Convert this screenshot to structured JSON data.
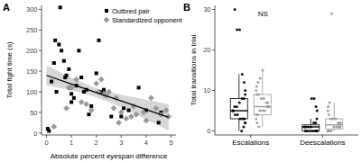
{
  "chart_data": [
    {
      "type": "scatter",
      "panel": "A",
      "x_label": "Absolute percent eyespan difference",
      "y_label": "Total fight time (s)",
      "xlim": [
        -0.2,
        5.2
      ],
      "xticks": [
        0,
        1,
        2,
        3,
        4,
        5
      ],
      "ylim": [
        -5,
        310
      ],
      "yticks": [
        0,
        50,
        100,
        150,
        200,
        250,
        300
      ],
      "grid": false,
      "legend": "top-right",
      "series": [
        {
          "name": "Outbred pair",
          "color": "#000000",
          "marker": "square",
          "x": [
            0.05,
            0.1,
            0.2,
            0.3,
            0.35,
            0.4,
            0.5,
            0.55,
            0.6,
            0.7,
            0.75,
            0.8,
            0.9,
            1.0,
            1.0,
            1.1,
            1.2,
            1.3,
            1.4,
            1.5,
            1.6,
            1.7,
            1.8,
            2.0,
            2.1,
            2.2,
            2.3,
            2.6,
            3.0,
            3.1,
            3.3,
            3.7,
            4.0,
            4.5,
            4.6
          ],
          "values": [
            10,
            5,
            125,
            170,
            225,
            100,
            215,
            305,
            200,
            175,
            135,
            140,
            155,
            95,
            75,
            85,
            115,
            200,
            135,
            100,
            105,
            45,
            65,
            145,
            225,
            100,
            105,
            40,
            40,
            60,
            55,
            110,
            55,
            25,
            50
          ]
        },
        {
          "name": "Standardized opponent",
          "color": "#9a9a9a",
          "marker": "diamond",
          "x": [
            0.3,
            0.8,
            0.9,
            1.0,
            1.2,
            1.4,
            1.6,
            1.8,
            2.0,
            2.1,
            2.2,
            2.3,
            2.4,
            2.5,
            2.7,
            2.8,
            2.9,
            3.0,
            3.2,
            3.4,
            3.5,
            3.6,
            3.9,
            4.0,
            4.2,
            4.4,
            4.6,
            4.8,
            4.9
          ],
          "values": [
            15,
            60,
            110,
            110,
            130,
            75,
            70,
            55,
            120,
            100,
            130,
            95,
            90,
            100,
            60,
            85,
            25,
            50,
            35,
            40,
            65,
            45,
            50,
            30,
            85,
            60,
            45,
            55,
            40
          ]
        }
      ],
      "fit": {
        "color": "#000000",
        "band_color": "#c8c8c8",
        "x": [
          0,
          1,
          2,
          3,
          4,
          4.9
        ],
        "values": [
          140,
          119,
          98,
          78,
          57,
          38
        ],
        "lower": [
          116,
          104,
          87,
          63,
          33,
          6
        ],
        "upper": [
          164,
          134,
          109,
          93,
          81,
          70
        ]
      }
    },
    {
      "type": "box",
      "panel": "B",
      "y_label": "Total transitions in trial",
      "categories": [
        "Escalations",
        "Deescalations"
      ],
      "ylim": [
        -1,
        31
      ],
      "yticks": [
        0,
        10,
        20,
        30
      ],
      "grid": false,
      "annotations": [
        {
          "text": "NS",
          "category": 0,
          "y": 29
        }
      ],
      "series": [
        {
          "color": "#000000",
          "min": [
            0,
            0
          ],
          "q1": [
            3,
            0
          ],
          "median": [
            5,
            1
          ],
          "q3": [
            8,
            1.5
          ],
          "max": [
            14,
            3
          ],
          "points": [
            [
              0,
              1,
              2,
              2,
              3,
              3,
              3,
              4,
              4,
              5,
              5,
              5,
              6,
              6,
              7,
              8,
              8,
              9,
              10,
              12,
              14,
              25,
              25,
              30
            ],
            [
              0,
              0,
              0,
              0,
              0,
              0,
              0,
              0,
              1,
              1,
              1,
              1,
              1,
              2,
              2,
              3,
              5,
              6,
              8,
              8
            ]
          ]
        },
        {
          "color": "#9a9a9a",
          "min": [
            1,
            0
          ],
          "q1": [
            4,
            0.5
          ],
          "median": [
            6,
            1.5
          ],
          "q3": [
            9,
            3
          ],
          "max": [
            15,
            7
          ],
          "points": [
            [
              1,
              2,
              3,
              4,
              4,
              5,
              5,
              5,
              6,
              6,
              6,
              7,
              7,
              8,
              8,
              9,
              9,
              10,
              11,
              12,
              13,
              15
            ],
            [
              0,
              0,
              0,
              0,
              1,
              1,
              1,
              1,
              2,
              2,
              2,
              3,
              3,
              3,
              4,
              5,
              6,
              7,
              29
            ]
          ]
        }
      ]
    }
  ]
}
